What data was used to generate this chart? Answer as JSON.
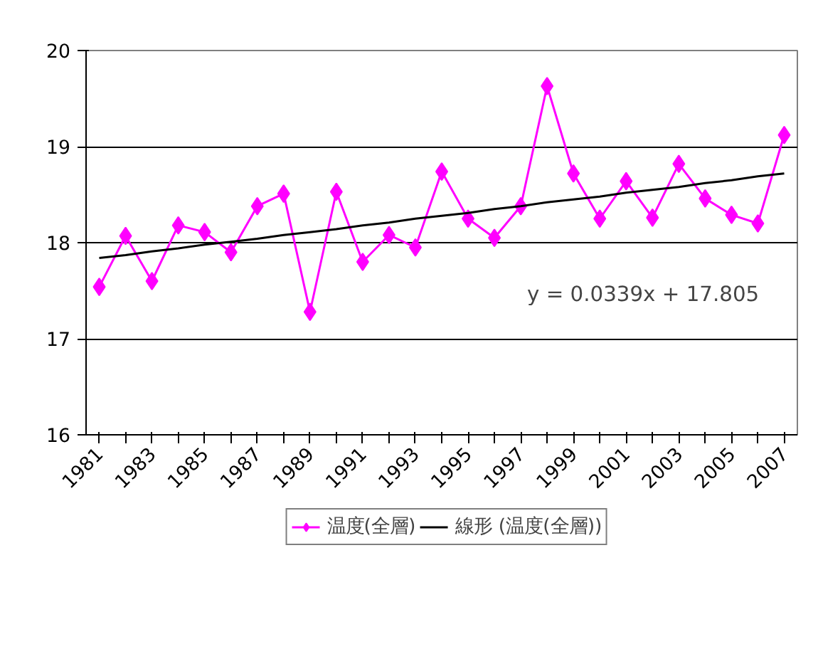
{
  "chart_data": {
    "type": "line",
    "categories": [
      "1981",
      null,
      "1983",
      null,
      "1985",
      null,
      "1987",
      null,
      "1989",
      null,
      "1991",
      null,
      "1993",
      null,
      "1995",
      null,
      "1997",
      null,
      "1999",
      null,
      "2001",
      null,
      "2003",
      null,
      "2005",
      null,
      "2007"
    ],
    "series": [
      {
        "name": "温度(全層)",
        "color": "#ff00ff",
        "marker": "diamond",
        "values": [
          17.54,
          18.07,
          17.6,
          18.18,
          18.11,
          17.9,
          18.38,
          18.51,
          17.28,
          18.53,
          17.8,
          18.08,
          17.95,
          18.74,
          18.25,
          18.05,
          18.38,
          19.63,
          18.72,
          18.25,
          18.64,
          18.26,
          18.82,
          18.46,
          18.29,
          18.2,
          19.12
        ]
      },
      {
        "name": "線形 (温度(全層))",
        "color": "#000000",
        "marker": "none",
        "values": [
          17.84,
          17.87,
          17.91,
          17.94,
          17.98,
          18.01,
          18.04,
          18.08,
          18.11,
          18.14,
          18.18,
          18.21,
          18.25,
          18.28,
          18.31,
          18.35,
          18.38,
          18.42,
          18.45,
          18.48,
          18.52,
          18.55,
          18.58,
          18.62,
          18.65,
          18.69,
          18.72
        ]
      }
    ],
    "ylim": [
      16,
      20
    ],
    "yticks": [
      16,
      17,
      18,
      19,
      20
    ],
    "grid": "y",
    "legend": "bottom",
    "annotations": [
      "y = 0.0339x + 17.805"
    ]
  }
}
